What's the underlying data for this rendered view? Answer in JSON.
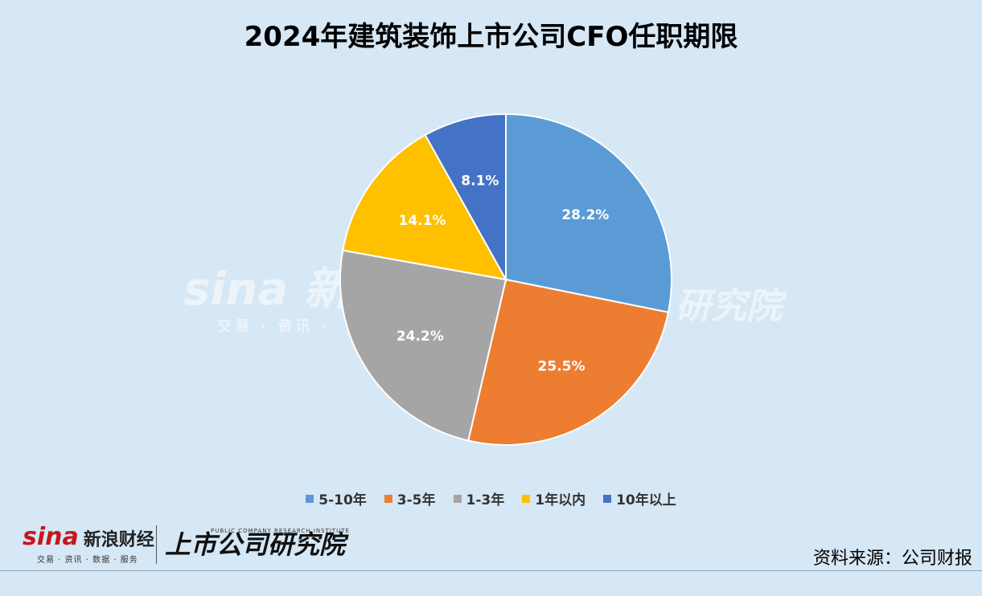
{
  "title": "2024年建筑装饰上市公司CFO任职期限",
  "chart_data": {
    "type": "pie",
    "title": "2024年建筑装饰上市公司CFO任职期限",
    "categories": [
      "5-10年",
      "3-5年",
      "1-3年",
      "1年以内",
      "10年以上"
    ],
    "values": [
      28.2,
      25.5,
      24.2,
      14.1,
      8.1
    ],
    "labels": [
      "28.2%",
      "25.5%",
      "24.2%",
      "14.1%",
      "8.1%"
    ],
    "colors": [
      "#5b9bd5",
      "#ed7d31",
      "#a5a5a5",
      "#ffc000",
      "#4472c4"
    ],
    "legend_position": "bottom"
  },
  "watermark": {
    "sina": "sina 新浪",
    "sina_sub": "交易 · 资讯 ·",
    "right": "研究院"
  },
  "footer": {
    "sina_logo": "sina",
    "sina_name": "新浪财经",
    "sina_sub": "交易 · 资讯 · 数据 · 服务",
    "research_name": "上市公司研究院",
    "research_en": "PUBLIC COMPANY RESEARCH INSTITUTE",
    "source": "资料来源：公司财报"
  }
}
